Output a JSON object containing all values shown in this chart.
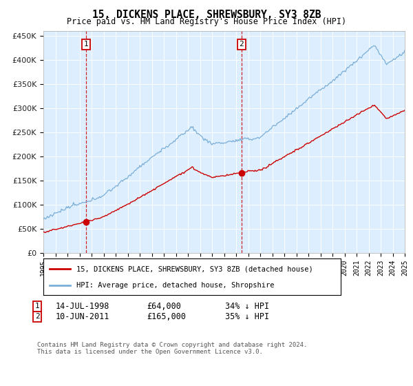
{
  "title": "15, DICKENS PLACE, SHREWSBURY, SY3 8ZB",
  "subtitle": "Price paid vs. HM Land Registry's House Price Index (HPI)",
  "background_color": "#ffffff",
  "plot_bg_color": "#ddeeff",
  "grid_color": "#ffffff",
  "ylim": [
    0,
    460000
  ],
  "yticks": [
    0,
    50000,
    100000,
    150000,
    200000,
    250000,
    300000,
    350000,
    400000,
    450000
  ],
  "sale1_date_x": 1998.54,
  "sale1_price": 64000,
  "sale2_date_x": 2011.44,
  "sale2_price": 165000,
  "line_color_property": "#cc0000",
  "line_color_hpi": "#7aaed6",
  "dashed_color": "#cc0000",
  "legend_label_property": "15, DICKENS PLACE, SHREWSBURY, SY3 8ZB (detached house)",
  "legend_label_hpi": "HPI: Average price, detached house, Shropshire",
  "footnote": "Contains HM Land Registry data © Crown copyright and database right 2024.\nThis data is licensed under the Open Government Licence v3.0.",
  "xmin": 1995,
  "xmax": 2025
}
